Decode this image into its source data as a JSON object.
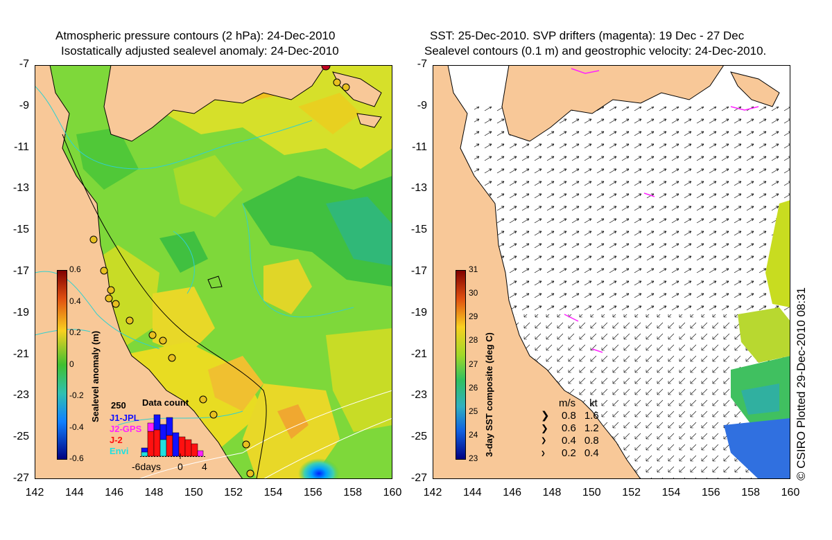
{
  "left_panel": {
    "title_line1": "Atmospheric pressure contours (2 hPa): 24-Dec-2010",
    "title_line2": "Isostatically adjusted sealevel anomaly: 24-Dec-2010",
    "colorbar_label": "Sealevel anomaly (m)",
    "colorbar_ticks": [
      "0.6",
      "0.4",
      "0.2",
      "0",
      "-0.2",
      "-0.4",
      "-0.6"
    ],
    "data_count": {
      "title": "Data count",
      "y_max_label": "250",
      "missions": [
        {
          "name": "J1-JPL",
          "color": "#1010ff"
        },
        {
          "name": "J2-GPS",
          "color": "#ff20ff"
        },
        {
          "name": "J-2",
          "color": "#ff1010"
        },
        {
          "name": "Envi",
          "color": "#20e0e0"
        }
      ],
      "x_labels": [
        "-6days",
        "0",
        "4"
      ]
    }
  },
  "right_panel": {
    "title_line1": "SST: 25-Dec-2010. SVP drifters (magenta): 19 Dec - 27 Dec",
    "title_line2": "Sealevel contours (0.1 m) and geostrophic velocity: 24-Dec-2010.",
    "colorbar_label": "3-day SST composite (deg C)",
    "colorbar_ticks": [
      "31",
      "30",
      "29",
      "28",
      "27",
      "26",
      "25",
      "24",
      "23"
    ],
    "speed_legend": {
      "header_ms": "m/s",
      "header_kt": "kt",
      "rows": [
        {
          "ms": "0.8",
          "kt": "1.6"
        },
        {
          "ms": "0.6",
          "kt": "1.2"
        },
        {
          "ms": "0.4",
          "kt": "0.8"
        },
        {
          "ms": "0.2",
          "kt": "0.4"
        }
      ]
    }
  },
  "axes": {
    "y_ticks": [
      "-7",
      "-9",
      "-11",
      "-13",
      "-15",
      "-17",
      "-19",
      "-21",
      "-23",
      "-25",
      "-27"
    ],
    "x_ticks": [
      "142",
      "144",
      "146",
      "148",
      "150",
      "152",
      "154",
      "156",
      "158",
      "160"
    ]
  },
  "credit": "© CSIRO Plotted 29-Dec-2010 08:31",
  "colors": {
    "land": "#f8c898",
    "ocean_green": "#60d030",
    "ocean_yellow": "#e8e020"
  }
}
